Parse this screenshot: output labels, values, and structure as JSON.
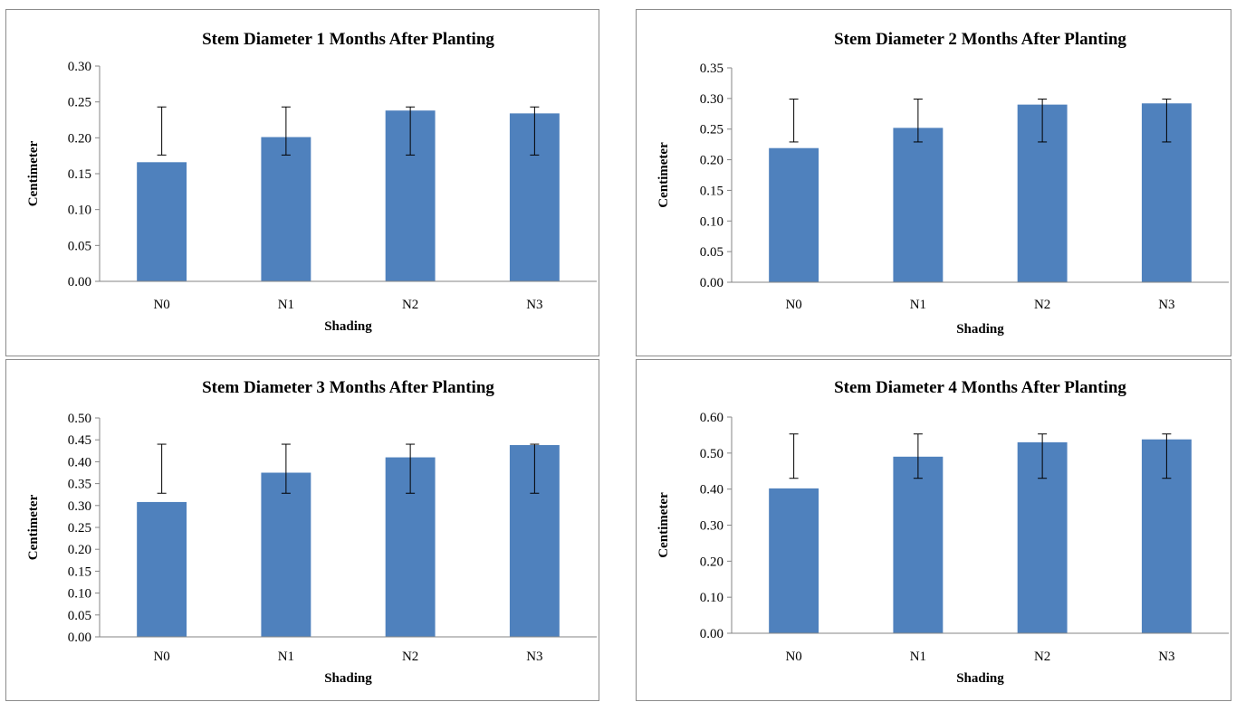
{
  "chart_data": [
    {
      "type": "bar",
      "title": "Stem Diameter 1 Months After Planting",
      "xlabel": "Shading",
      "ylabel": "Centimeter",
      "categories": [
        "N0",
        "N1",
        "N2",
        "N3"
      ],
      "values": [
        0.166,
        0.201,
        0.238,
        0.234
      ],
      "error_bars": [
        {
          "low": 0.176,
          "high": 0.243
        },
        {
          "low": 0.176,
          "high": 0.243
        },
        {
          "low": 0.176,
          "high": 0.243
        },
        {
          "low": 0.176,
          "high": 0.243
        }
      ],
      "ylim": [
        0,
        0.3
      ],
      "yticks": [
        "0.00",
        "0.05",
        "0.10",
        "0.15",
        "0.20",
        "0.25",
        "0.30"
      ],
      "bar_color": "#4f81bd",
      "grid": false,
      "legend": "none"
    },
    {
      "type": "bar",
      "title": "Stem Diameter 2 Months After Planting",
      "xlabel": "Shading",
      "ylabel": "Centimeter",
      "categories": [
        "N0",
        "N1",
        "N2",
        "N3"
      ],
      "values": [
        0.219,
        0.252,
        0.29,
        0.292
      ],
      "error_bars": [
        {
          "low": 0.229,
          "high": 0.299
        },
        {
          "low": 0.229,
          "high": 0.299
        },
        {
          "low": 0.229,
          "high": 0.299
        },
        {
          "low": 0.229,
          "high": 0.299
        }
      ],
      "ylim": [
        0,
        0.35
      ],
      "yticks": [
        "0.00",
        "0.05",
        "0.10",
        "0.15",
        "0.20",
        "0.25",
        "0.30",
        "0.35"
      ],
      "bar_color": "#4f81bd",
      "grid": false,
      "legend": "none"
    },
    {
      "type": "bar",
      "title": "Stem Diameter 3 Months After Planting",
      "xlabel": "Shading",
      "ylabel": "Centimeter",
      "categories": [
        "N0",
        "N1",
        "N2",
        "N3"
      ],
      "values": [
        0.308,
        0.375,
        0.41,
        0.438
      ],
      "error_bars": [
        {
          "low": 0.328,
          "high": 0.44
        },
        {
          "low": 0.328,
          "high": 0.44
        },
        {
          "low": 0.328,
          "high": 0.44
        },
        {
          "low": 0.328,
          "high": 0.44
        }
      ],
      "ylim": [
        0,
        0.5
      ],
      "yticks": [
        "0.00",
        "0.05",
        "0.10",
        "0.15",
        "0.20",
        "0.25",
        "0.30",
        "0.35",
        "0.40",
        "0.45",
        "0.50"
      ],
      "bar_color": "#4f81bd",
      "grid": false,
      "legend": "none"
    },
    {
      "type": "bar",
      "title": "Stem Diameter 4 Months After Planting",
      "xlabel": "Shading",
      "ylabel": "Centimeter",
      "categories": [
        "N0",
        "N1",
        "N2",
        "N3"
      ],
      "values": [
        0.402,
        0.49,
        0.53,
        0.538
      ],
      "error_bars": [
        {
          "low": 0.43,
          "high": 0.553
        },
        {
          "low": 0.43,
          "high": 0.553
        },
        {
          "low": 0.43,
          "high": 0.553
        },
        {
          "low": 0.43,
          "high": 0.553
        }
      ],
      "ylim": [
        0,
        0.6
      ],
      "yticks": [
        "0.00",
        "0.10",
        "0.20",
        "0.30",
        "0.40",
        "0.50",
        "0.60"
      ],
      "bar_color": "#4f81bd",
      "grid": false,
      "legend": "none"
    }
  ]
}
